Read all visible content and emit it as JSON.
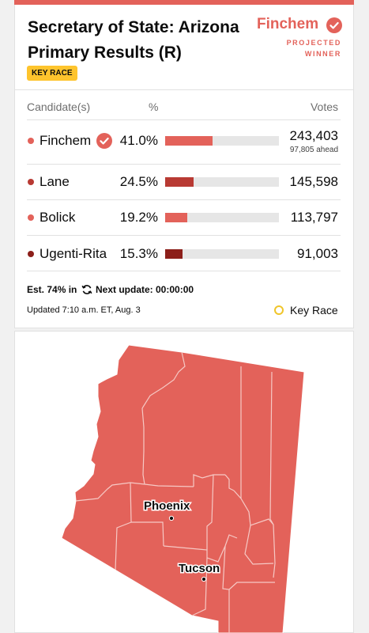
{
  "race": {
    "title": "Secretary of State: Arizona Primary Results (R)",
    "badge": "KEY RACE"
  },
  "winner": {
    "name": "Finchem",
    "label_line1": "PROJECTED",
    "label_line2": "WINNER",
    "icon": "check-circle-icon"
  },
  "table": {
    "col_candidate": "Candidate(s)",
    "col_pct": "%",
    "col_votes": "Votes",
    "rows": [
      {
        "name": "Finchem",
        "pct": "41.0%",
        "share": 0.41,
        "votes": "243,403",
        "note": "97,805 ahead",
        "color": "#e3625a",
        "winner": true
      },
      {
        "name": "Lane",
        "pct": "24.5%",
        "share": 0.245,
        "votes": "145,598",
        "note": "",
        "color": "#b83a33",
        "winner": false
      },
      {
        "name": "Bolick",
        "pct": "19.2%",
        "share": 0.192,
        "votes": "113,797",
        "note": "",
        "color": "#e3625a",
        "winner": false
      },
      {
        "name": "Ugenti-Rita",
        "pct": "15.3%",
        "share": 0.153,
        "votes": "91,003",
        "note": "",
        "color": "#8c1f1a",
        "winner": false
      }
    ]
  },
  "status": {
    "estimate": "Est. 74% in",
    "next_update": "Next update: 00:00:00",
    "updated": "Updated 7:10 a.m. ET, Aug. 3",
    "legend_label": "Key Race",
    "legend_color": "#f0c52a",
    "refresh_icon": "refresh-icon"
  },
  "map": {
    "fill": "#e3625a",
    "cities": [
      "Phoenix",
      "Tucson"
    ]
  }
}
